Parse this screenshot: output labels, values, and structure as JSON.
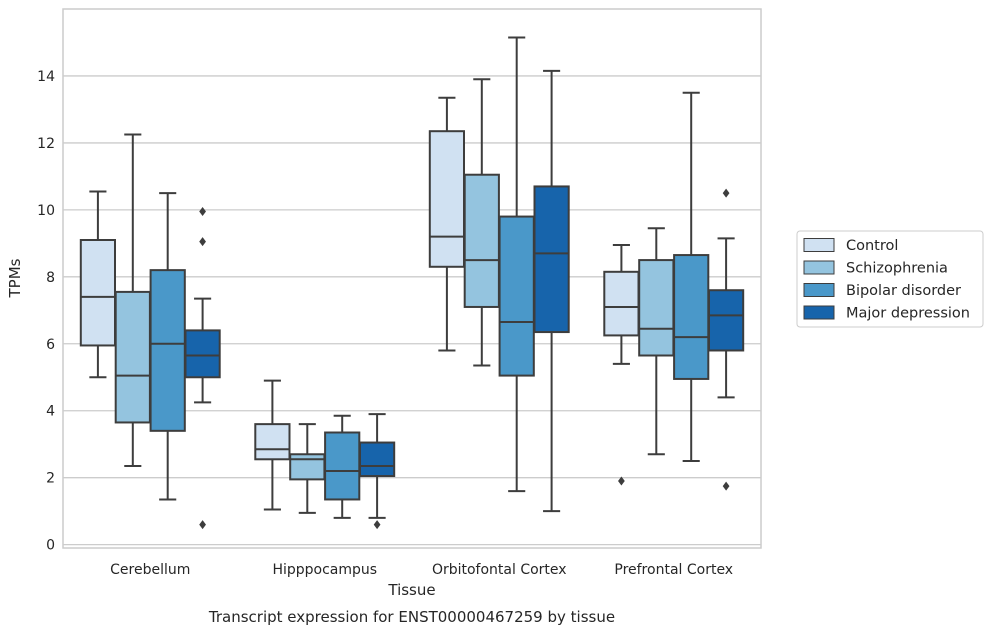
{
  "chart_data": {
    "type": "boxplot",
    "title": "",
    "caption": "Transcript expression for ENST00000467259 by tissue",
    "xlabel": "Tissue",
    "ylabel": "TPMs",
    "ylim": [
      -0.1,
      16.0
    ],
    "yticks": [
      0,
      2,
      4,
      6,
      8,
      10,
      12,
      14
    ],
    "grid": "horizontal",
    "legend_position": "right",
    "categories": [
      "Cerebellum",
      "Hipppocampus",
      "Orbitofontal Cortex",
      "Prefrontal Cortex"
    ],
    "series": [
      {
        "name": "Control",
        "color": "#d0e1f2",
        "boxes": [
          {
            "whislo": 5.0,
            "q1": 5.95,
            "med": 7.4,
            "q3": 9.1,
            "whishi": 10.55,
            "fliers": []
          },
          {
            "whislo": 1.05,
            "q1": 2.55,
            "med": 2.85,
            "q3": 3.6,
            "whishi": 4.9,
            "fliers": []
          },
          {
            "whislo": 5.8,
            "q1": 8.3,
            "med": 9.2,
            "q3": 12.35,
            "whishi": 13.35,
            "fliers": []
          },
          {
            "whislo": 5.4,
            "q1": 6.25,
            "med": 7.1,
            "q3": 8.15,
            "whishi": 8.95,
            "fliers": [
              1.9
            ]
          }
        ]
      },
      {
        "name": "Schizophrenia",
        "color": "#94c4df",
        "boxes": [
          {
            "whislo": 2.35,
            "q1": 3.65,
            "med": 5.05,
            "q3": 7.55,
            "whishi": 12.25,
            "fliers": []
          },
          {
            "whislo": 0.95,
            "q1": 1.95,
            "med": 2.55,
            "q3": 2.7,
            "whishi": 3.6,
            "fliers": []
          },
          {
            "whislo": 5.35,
            "q1": 7.1,
            "med": 8.5,
            "q3": 11.05,
            "whishi": 13.9,
            "fliers": []
          },
          {
            "whislo": 2.7,
            "q1": 5.65,
            "med": 6.45,
            "q3": 8.5,
            "whishi": 9.45,
            "fliers": []
          }
        ]
      },
      {
        "name": "Bipolar disorder",
        "color": "#4a98c9",
        "boxes": [
          {
            "whislo": 1.35,
            "q1": 3.4,
            "med": 6.0,
            "q3": 8.2,
            "whishi": 10.5,
            "fliers": []
          },
          {
            "whislo": 0.8,
            "q1": 1.35,
            "med": 2.2,
            "q3": 3.35,
            "whishi": 3.85,
            "fliers": []
          },
          {
            "whislo": 1.6,
            "q1": 5.05,
            "med": 6.65,
            "q3": 9.8,
            "whishi": 15.15,
            "fliers": []
          },
          {
            "whislo": 2.5,
            "q1": 4.95,
            "med": 6.2,
            "q3": 8.65,
            "whishi": 13.5,
            "fliers": []
          }
        ]
      },
      {
        "name": "Major depression",
        "color": "#1764ab",
        "boxes": [
          {
            "whislo": 4.25,
            "q1": 5.0,
            "med": 5.65,
            "q3": 6.4,
            "whishi": 7.35,
            "fliers": [
              9.95,
              9.05,
              0.6
            ]
          },
          {
            "whislo": 0.8,
            "q1": 2.05,
            "med": 2.35,
            "q3": 3.05,
            "whishi": 3.9,
            "fliers": [
              0.6
            ]
          },
          {
            "whislo": 1.0,
            "q1": 6.35,
            "med": 8.7,
            "q3": 10.7,
            "whishi": 14.15,
            "fliers": []
          },
          {
            "whislo": 4.4,
            "q1": 5.8,
            "med": 6.85,
            "q3": 7.6,
            "whishi": 9.15,
            "fliers": [
              10.5,
              1.75
            ]
          }
        ]
      }
    ]
  }
}
